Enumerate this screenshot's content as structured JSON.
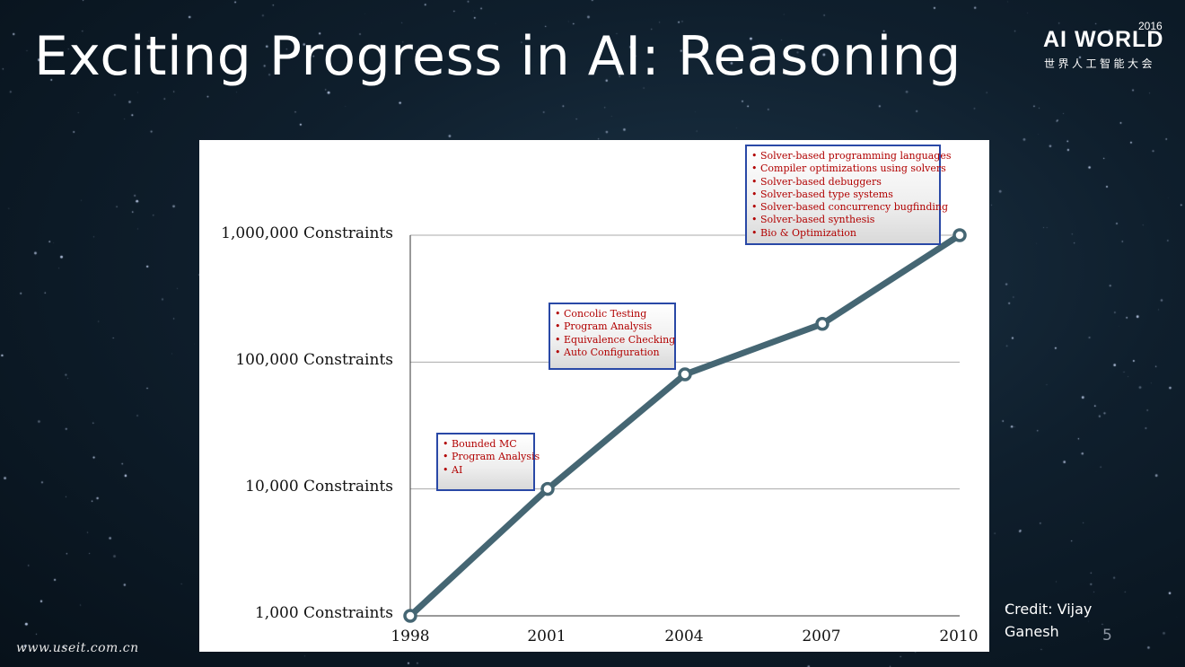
{
  "slide": {
    "title": "Exciting Progress in AI: Reasoning",
    "page_number": "5",
    "credit": {
      "line1": "Credit: Vijay",
      "line2": "Ganesh"
    },
    "watermark": "www.useit.com.cn",
    "logo": {
      "year": "2016",
      "wordmark": "AI WORLD",
      "subtitle": "世界人工智能大会"
    }
  },
  "colors": {
    "line": "#456673",
    "marker_fill": "#ffffff",
    "gridline": "#aaaaaa",
    "note_border": "#2948a6",
    "note_text": "#b10000"
  },
  "chart_data": {
    "type": "line",
    "scale": "log",
    "x": [
      "1998",
      "2001",
      "2004",
      "2007",
      "2010"
    ],
    "y": [
      1000,
      10000,
      80000,
      200000,
      1000000
    ],
    "ylim": [
      1000,
      1000000
    ],
    "y_ticks": [
      1000,
      10000,
      100000,
      1000000
    ],
    "y_tick_labels": [
      "1,000 Constraints",
      "10,000 Constraints",
      "100,000 Constraints",
      "1,000,000 Constraints"
    ],
    "x_tick_labels": [
      "1998",
      "2001",
      "2004",
      "2007",
      "2010"
    ],
    "grid": "horizontal",
    "annotations": [
      {
        "near_x": "2001",
        "items": [
          "Bounded MC",
          "Program Analysis",
          "AI"
        ]
      },
      {
        "near_x": "2004",
        "items": [
          "Concolic Testing",
          "Program Analysis",
          "Equivalence Checking",
          "Auto Configuration"
        ]
      },
      {
        "near_x": "2010",
        "items": [
          "Solver-based programming languages",
          "Compiler optimizations using solvers",
          "Solver-based debuggers",
          "Solver-based type systems",
          "Solver-based concurrency bugfinding",
          "Solver-based synthesis",
          "Bio & Optimization"
        ]
      }
    ]
  }
}
